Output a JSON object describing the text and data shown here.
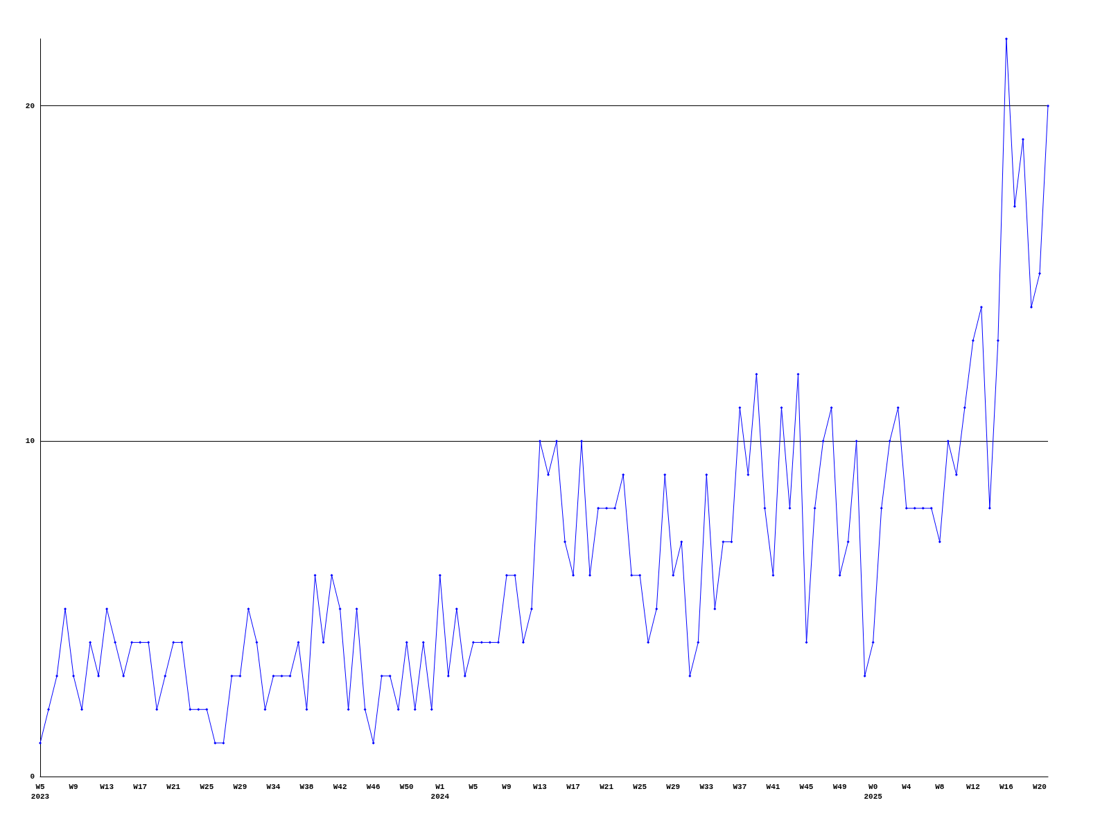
{
  "chart_data": {
    "type": "line",
    "categories": [
      "W5\n2023",
      null,
      null,
      null,
      "W9",
      null,
      null,
      null,
      "W13",
      null,
      null,
      null,
      "W17",
      null,
      null,
      null,
      "W21",
      null,
      null,
      null,
      "W25",
      null,
      null,
      null,
      "W29",
      null,
      null,
      null,
      "W34",
      null,
      null,
      null,
      "W38",
      null,
      null,
      null,
      "W42",
      null,
      null,
      null,
      "W46",
      null,
      null,
      null,
      "W50",
      null,
      null,
      null,
      "W1\n2024",
      null,
      null,
      null,
      "W5",
      null,
      null,
      null,
      "W9",
      null,
      null,
      null,
      "W13",
      null,
      null,
      null,
      "W17",
      null,
      null,
      null,
      "W21",
      null,
      null,
      null,
      "W25",
      null,
      null,
      null,
      "W29",
      null,
      null,
      null,
      "W33",
      null,
      null,
      null,
      "W37",
      null,
      null,
      null,
      "W41",
      null,
      null,
      null,
      "W45",
      null,
      null,
      null,
      "W49",
      null,
      null,
      null,
      "W0\n2025",
      null,
      null,
      null,
      "W4",
      null,
      null,
      null,
      "W8",
      null,
      null,
      null,
      "W12",
      null,
      null,
      null,
      "W16",
      null,
      null,
      null,
      "W20",
      null
    ],
    "series": [
      {
        "color": "#0000ff",
        "values": [
          1,
          2,
          3,
          5,
          3,
          2,
          4,
          3,
          5,
          4,
          3,
          4,
          4,
          4,
          2,
          3,
          4,
          4,
          2,
          2,
          2,
          1,
          1,
          3,
          3,
          5,
          4,
          2,
          3,
          3,
          3,
          4,
          2,
          6,
          4,
          6,
          5,
          2,
          5,
          2,
          1,
          3,
          3,
          2,
          4,
          2,
          4,
          2,
          6,
          3,
          5,
          3,
          4,
          4,
          4,
          4,
          6,
          6,
          4,
          5,
          10,
          9,
          10,
          7,
          6,
          10,
          6,
          8,
          8,
          8,
          9,
          6,
          6,
          4,
          5,
          9,
          6,
          7,
          3,
          4,
          9,
          5,
          7,
          7,
          11,
          9,
          12,
          8,
          6,
          11,
          8,
          12,
          4,
          8,
          10,
          11,
          6,
          7,
          10,
          3,
          4,
          8,
          10,
          11,
          8,
          8,
          8,
          8,
          7,
          10,
          9,
          11,
          13,
          14,
          8,
          13,
          22,
          17,
          19,
          14,
          15,
          20
        ]
      }
    ],
    "ylim": [
      0,
      22
    ],
    "yticks": [
      0,
      10,
      20
    ],
    "grid": "y",
    "marker": "diamond",
    "line_style": "solid"
  }
}
